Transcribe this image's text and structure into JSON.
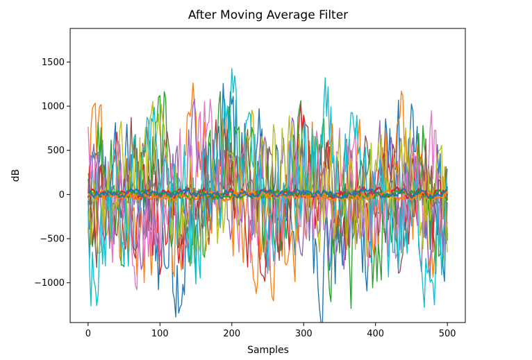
{
  "chart_data": {
    "type": "line",
    "title": "After Moving Average Filter",
    "xlabel": "Samples",
    "ylabel": "dB",
    "xlim": [
      -25,
      525
    ],
    "ylim": [
      -1450,
      1880
    ],
    "x_range": [
      0,
      500
    ],
    "x_ticks": [
      0,
      100,
      200,
      300,
      400,
      500
    ],
    "y_ticks": [
      -1000,
      -500,
      0,
      500,
      1000,
      1500
    ],
    "x_tick_labels": [
      "0",
      "100",
      "200",
      "300",
      "400",
      "500"
    ],
    "y_tick_labels": [
      "−1000",
      "−500",
      "0",
      "500",
      "1000",
      "1500"
    ],
    "grid": false,
    "legend": "none",
    "colors": [
      "#1f77b4",
      "#ff7f0e",
      "#2ca02c",
      "#d62728",
      "#9467bd",
      "#8c564b",
      "#e377c2",
      "#7f7f7f",
      "#bcbd22",
      "#17becf"
    ],
    "series": [
      {
        "color": "#1f77b4",
        "amplitude": 650,
        "x": [
          0,
          50,
          90,
          130,
          180,
          205,
          250,
          300,
          325,
          380,
          430,
          500
        ],
        "y": [
          -600,
          420,
          -1200,
          -1280,
          650,
          1500,
          -560,
          380,
          -1150,
          -900,
          600,
          -900
        ]
      },
      {
        "color": "#ff7f0e",
        "amplitude": 600,
        "x": [
          0,
          10,
          60,
          90,
          150,
          200,
          260,
          320,
          370,
          430,
          480,
          500
        ],
        "y": [
          1150,
          1160,
          -800,
          -1300,
          700,
          300,
          -1000,
          760,
          -700,
          1120,
          -500,
          400
        ]
      },
      {
        "color": "#2ca02c",
        "amplitude": 650,
        "x": [
          0,
          50,
          100,
          150,
          200,
          250,
          300,
          350,
          380,
          450,
          500
        ],
        "y": [
          800,
          -600,
          900,
          -900,
          700,
          -700,
          850,
          -1000,
          -1220,
          900,
          -500
        ]
      },
      {
        "color": "#d62728",
        "amplitude": 500,
        "x": [
          0,
          60,
          120,
          180,
          240,
          300,
          360,
          420,
          480,
          500
        ],
        "y": [
          -400,
          520,
          -900,
          500,
          -600,
          400,
          -700,
          500,
          -600,
          300
        ]
      },
      {
        "color": "#9467bd",
        "amplitude": 500,
        "x": [
          0,
          70,
          140,
          210,
          280,
          350,
          420,
          490,
          500
        ],
        "y": [
          400,
          -500,
          800,
          -400,
          700,
          -800,
          600,
          -400,
          200
        ]
      },
      {
        "color": "#8c564b",
        "amplitude": 500,
        "x": [
          0,
          60,
          130,
          200,
          270,
          340,
          410,
          480,
          500
        ],
        "y": [
          -500,
          700,
          -600,
          900,
          -500,
          600,
          -800,
          500,
          -300
        ]
      },
      {
        "color": "#e377c2",
        "amplitude": 550,
        "x": [
          0,
          80,
          160,
          240,
          320,
          400,
          480,
          500
        ],
        "y": [
          600,
          -700,
          900,
          -650,
          800,
          -900,
          700,
          -400
        ]
      },
      {
        "color": "#7f7f7f",
        "amplitude": 120,
        "x": [
          0,
          100,
          200,
          300,
          400,
          500
        ],
        "y": [
          20,
          -40,
          60,
          -30,
          40,
          10
        ]
      },
      {
        "color": "#bcbd22",
        "amplitude": 550,
        "x": [
          0,
          90,
          180,
          270,
          360,
          450,
          500
        ],
        "y": [
          -300,
          800,
          -700,
          1000,
          -600,
          700,
          -400
        ]
      },
      {
        "color": "#17becf",
        "amplitude": 600,
        "x": [
          0,
          100,
          150,
          206,
          250,
          330,
          400,
          500
        ],
        "y": [
          -1170,
          600,
          -900,
          1750,
          -800,
          900,
          -700,
          -1050
        ]
      },
      {
        "color": "#d62728",
        "amplitude": 45,
        "x": [
          0,
          100,
          200,
          300,
          400,
          500
        ],
        "y": [
          10,
          -20,
          30,
          -10,
          20,
          0
        ]
      },
      {
        "color": "#2ca02c",
        "amplitude": 40,
        "x": [
          0,
          100,
          200,
          300,
          400,
          500
        ],
        "y": [
          -20,
          20,
          -10,
          10,
          -20,
          10
        ]
      },
      {
        "color": "#ff7f0e",
        "amplitude": 45,
        "x": [
          0,
          100,
          200,
          300,
          400,
          500
        ],
        "y": [
          -40,
          -10,
          -30,
          -20,
          -40,
          -30
        ]
      },
      {
        "color": "#1f77b4",
        "amplitude": 35,
        "x": [
          0,
          100,
          200,
          300,
          400,
          500
        ],
        "y": [
          20,
          30,
          10,
          25,
          15,
          20
        ]
      }
    ]
  }
}
